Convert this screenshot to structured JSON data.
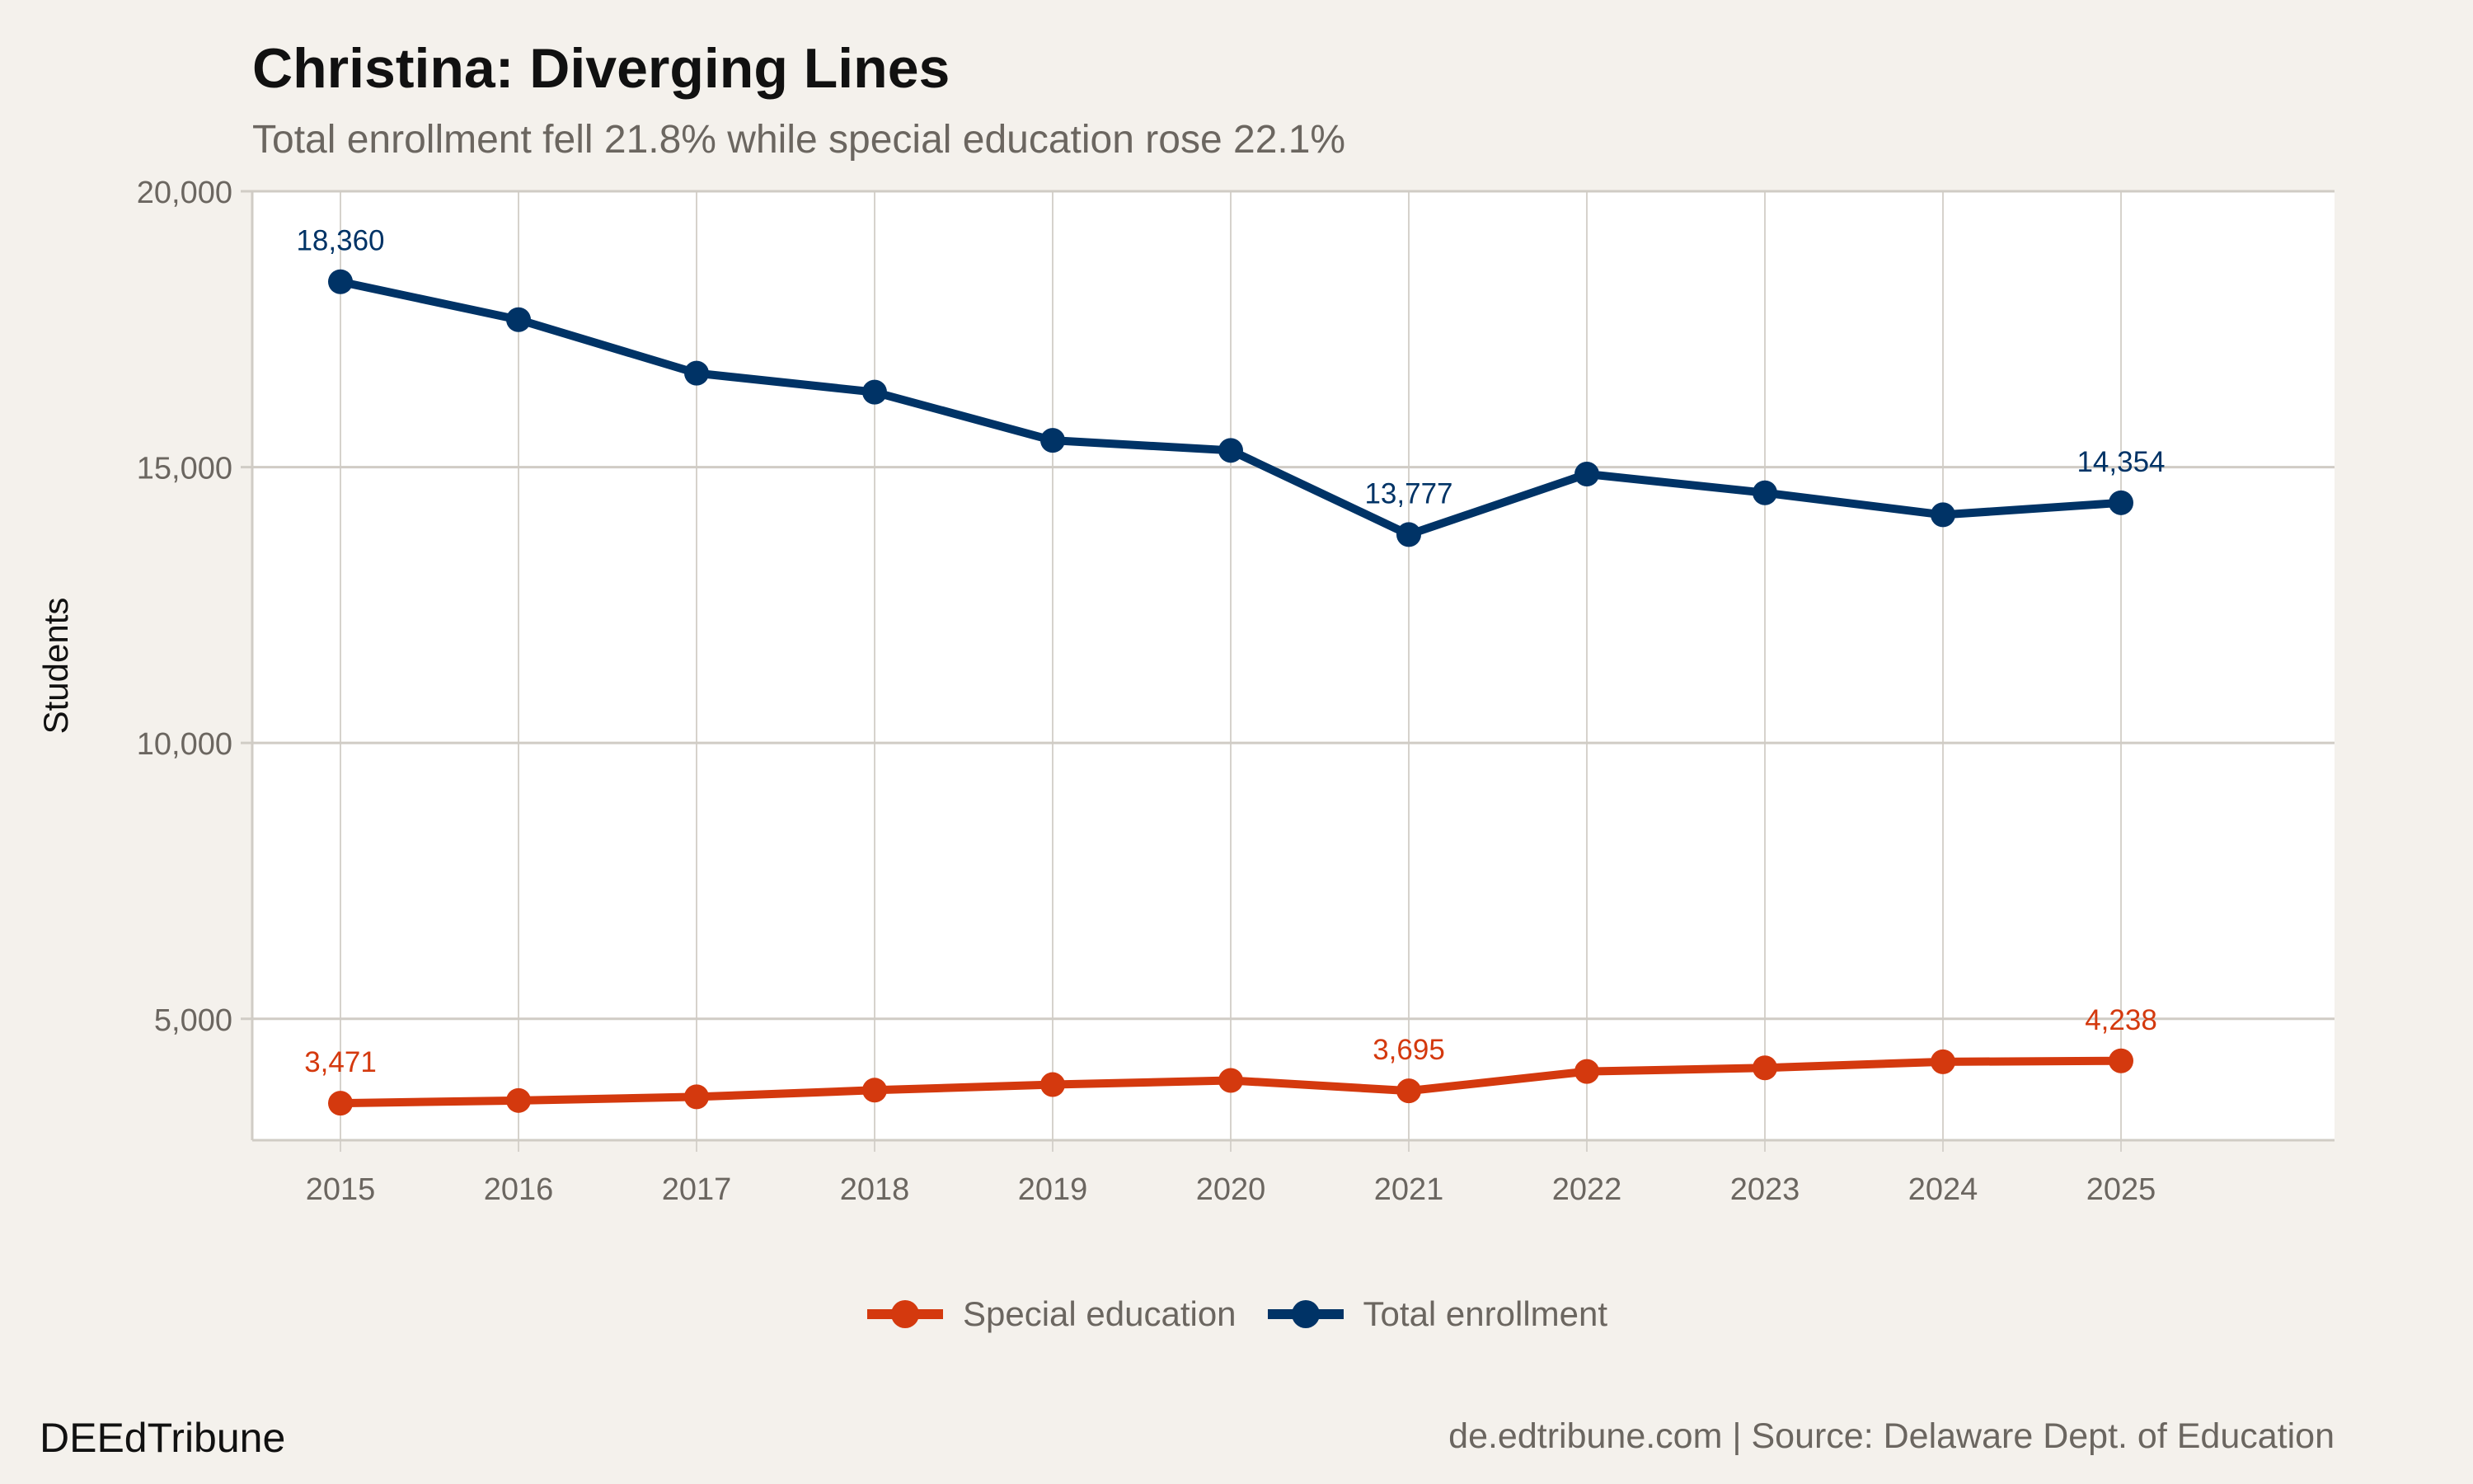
{
  "title": "Christina: Diverging Lines",
  "subtitle": "Total enrollment fell 21.8% while special education rose 22.1%",
  "brand": "DEEdTribune",
  "source": "de.edtribune.com | Source: Delaware Dept. of Education",
  "chart_data": {
    "type": "line",
    "title": "Christina: Diverging Lines",
    "subtitle": "Total enrollment fell 21.8% while special education rose 22.1%",
    "xlabel": "",
    "ylabel": "Students",
    "x": [
      2015,
      2016,
      2017,
      2018,
      2019,
      2020,
      2021,
      2022,
      2023,
      2024,
      2025
    ],
    "ylim": [
      2800,
      20000
    ],
    "yticks": [
      5000,
      10000,
      15000,
      20000
    ],
    "ytick_labels": [
      "5,000",
      "10,000",
      "15,000",
      "20,000"
    ],
    "grid": true,
    "legend_position": "bottom",
    "series": [
      {
        "name": "Special education",
        "color": "#d4390e",
        "values": [
          3471,
          3520,
          3586,
          3707,
          3808,
          3884,
          3695,
          4046,
          4111,
          4222,
          4238
        ],
        "labels": {
          "2015": "3,471",
          "2021": "3,695",
          "2025": "4,238"
        }
      },
      {
        "name": "Total enrollment",
        "color": "#003366",
        "values": [
          18360,
          17673,
          16703,
          16359,
          15485,
          15303,
          13777,
          14874,
          14535,
          14136,
          14354
        ],
        "labels": {
          "2015": "18,360",
          "2021": "13,777",
          "2025": "14,354"
        }
      }
    ]
  }
}
